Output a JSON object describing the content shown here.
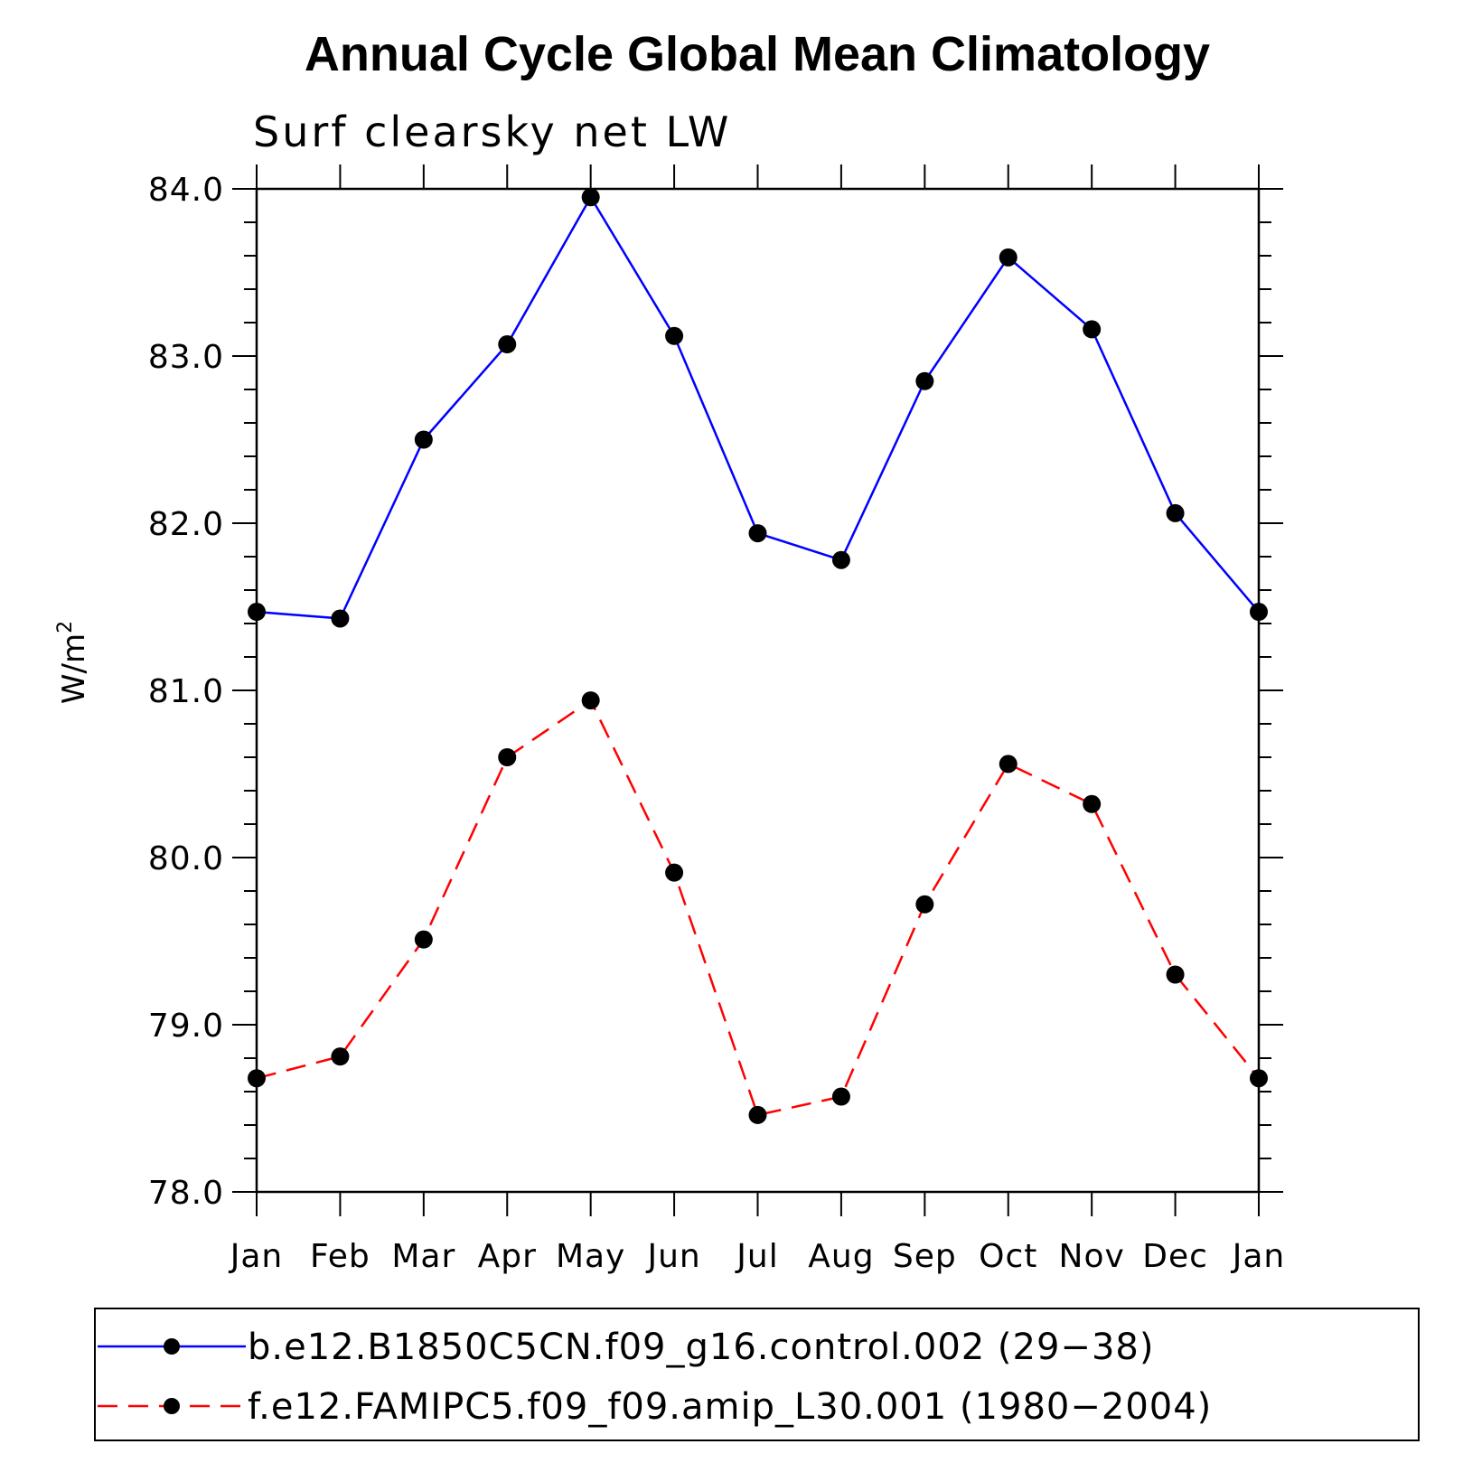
{
  "chart_data": {
    "type": "line",
    "title": "Annual Cycle Global Mean Climatology",
    "subtitle": "Surf clearsky net LW",
    "xlabel": "",
    "ylabel": "W/m",
    "ylabel_sup": "2",
    "categories": [
      "Jan",
      "Feb",
      "Mar",
      "Apr",
      "May",
      "Jun",
      "Jul",
      "Aug",
      "Sep",
      "Oct",
      "Nov",
      "Dec",
      "Jan"
    ],
    "ylim": [
      78.0,
      84.0
    ],
    "yticks": [
      "78.0",
      "79.0",
      "80.0",
      "81.0",
      "82.0",
      "83.0",
      "84.0"
    ],
    "grid": false,
    "legend_position": "bottom",
    "series": [
      {
        "name": "b.e12.B1850C5CN.f09_g16.control.002 (29−38)",
        "color": "#0000ff",
        "dash": "solid",
        "values": [
          81.47,
          81.43,
          82.5,
          83.07,
          83.95,
          83.12,
          81.94,
          81.78,
          82.85,
          83.59,
          83.16,
          82.06,
          81.47
        ]
      },
      {
        "name": "f.e12.FAMIPC5.f09_f09.amip_L30.001 (1980−2004)",
        "color": "#ff0000",
        "dash": "dashed",
        "values": [
          78.68,
          78.81,
          79.51,
          80.6,
          80.94,
          79.91,
          78.46,
          78.57,
          79.72,
          80.56,
          80.32,
          79.3,
          78.68
        ]
      }
    ]
  }
}
